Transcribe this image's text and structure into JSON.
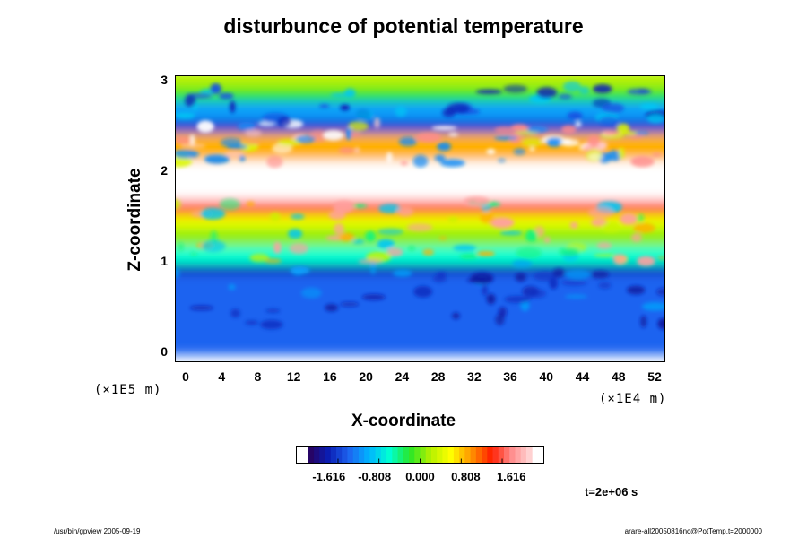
{
  "chart_data": {
    "type": "heatmap",
    "title": "disturbunce of potential temperature",
    "xlabel": "X-coordinate",
    "ylabel": "Z-coordinate",
    "x_unit": "(×1E4 m)",
    "y_unit": "(×1E5 m)",
    "x_ticks": [
      "0",
      "4",
      "8",
      "12",
      "16",
      "20",
      "24",
      "28",
      "32",
      "36",
      "40",
      "44",
      "48",
      "52"
    ],
    "y_ticks": [
      "0",
      "1",
      "2",
      "3"
    ],
    "xlim": [
      0,
      52
    ],
    "ylim": [
      0,
      3
    ],
    "colorbar_ticks": [
      "-1.616",
      "-0.808",
      "0.000",
      "0.808",
      "1.616"
    ],
    "colorbar_range": [
      -2.2,
      2.2
    ],
    "colormap": [
      "#2a005a",
      "#0a1eb4",
      "#1e64f0",
      "#00b4ff",
      "#00ffd2",
      "#28e628",
      "#b4f000",
      "#ffff00",
      "#ff9600",
      "#ff1e00",
      "#ff8c8c",
      "#ffdcdc"
    ],
    "bands": [
      {
        "z": [
          0.0,
          0.9
        ],
        "value": -1.4
      },
      {
        "z": [
          0.9,
          1.0
        ],
        "value": -1.85
      },
      {
        "z": [
          1.0,
          1.2
        ],
        "value": -0.6
      },
      {
        "z": [
          1.2,
          1.4
        ],
        "value": 0.1
      },
      {
        "z": [
          1.4,
          1.55
        ],
        "value": 0.5
      },
      {
        "z": [
          1.55,
          1.65
        ],
        "value": 1.2
      },
      {
        "z": [
          1.65,
          1.72
        ],
        "value": 1.8
      },
      {
        "z": [
          1.72,
          2.15
        ],
        "value": null
      },
      {
        "z": [
          2.15,
          2.45
        ],
        "value": 0.9
      },
      {
        "z": [
          2.45,
          2.6
        ],
        "value": -1.6
      },
      {
        "z": [
          2.6,
          2.8
        ],
        "value": -1.1
      },
      {
        "z": [
          2.8,
          2.95
        ],
        "value": -0.2
      },
      {
        "z": [
          2.95,
          3.1
        ],
        "value": 0.2
      }
    ],
    "time_label": "t=2e+06 s"
  },
  "footer": {
    "left": "/usr/bin/gpview 2005-09-19",
    "right": "arare-all20050816nc@PotTemp,t=2000000"
  }
}
